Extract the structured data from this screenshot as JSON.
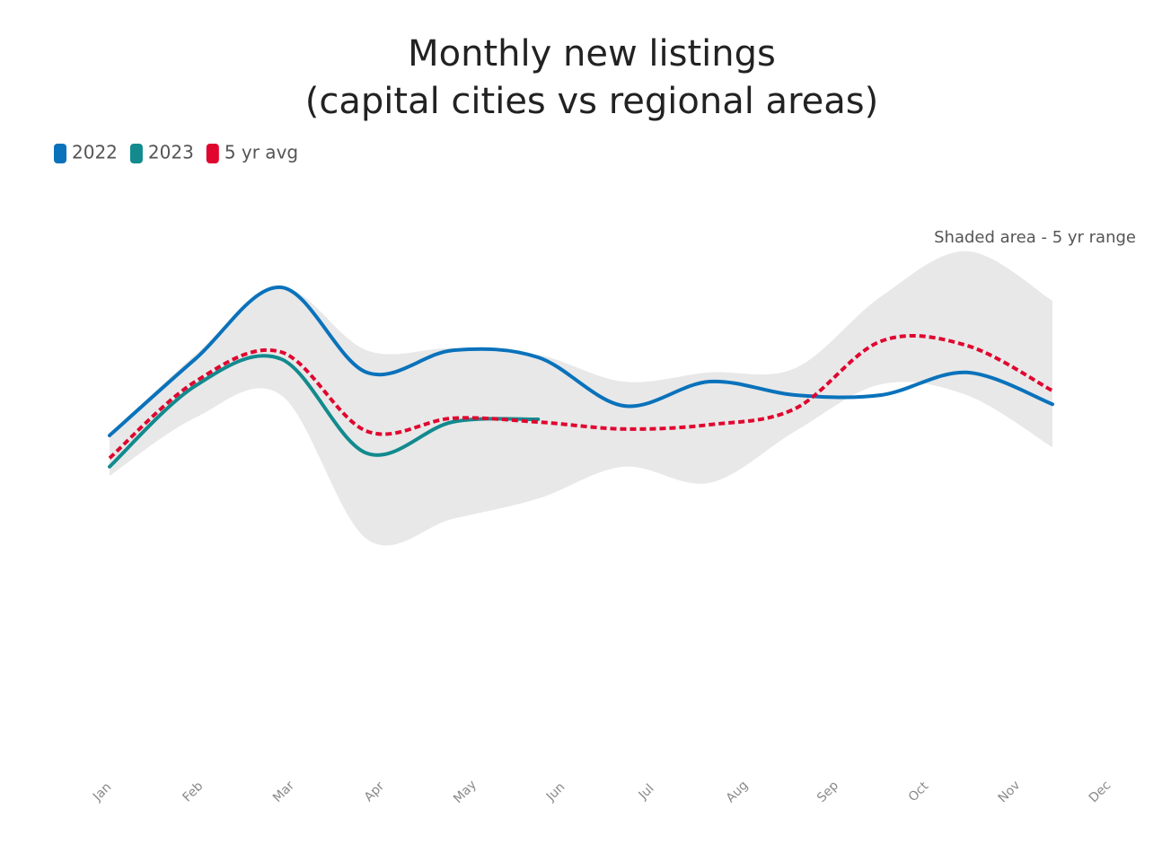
{
  "chart_data": {
    "type": "line",
    "title": [
      "Monthly new listings",
      "(capital cities vs regional areas)"
    ],
    "annotation": "Shaded area - 5 yr range",
    "categories": [
      "Jan",
      "Feb",
      "Mar",
      "Apr",
      "May",
      "Jun",
      "Jul",
      "Aug",
      "Sep",
      "Oct",
      "Nov",
      "Dec"
    ],
    "series": [
      {
        "name": "2022",
        "color": "#0a72bb",
        "dashed": false,
        "values": [
          62.5,
          76.7,
          90,
          74.2,
          78.3,
          77,
          68,
          72.5,
          70,
          70,
          74.2,
          68.3
        ]
      },
      {
        "name": "2023",
        "color": "#128a8e",
        "dashed": false,
        "values": [
          56.7,
          71.7,
          76.7,
          59.2,
          65,
          65.5,
          null,
          null,
          null,
          null,
          null,
          null
        ]
      },
      {
        "name": "5 yr avg",
        "color": "#e0062f",
        "dashed": true,
        "values": [
          58.3,
          72.5,
          78,
          63.3,
          65.7,
          65,
          63.7,
          64.5,
          67.5,
          80,
          79.2,
          70.8
        ]
      }
    ],
    "range": {
      "color": "#e8e8e8",
      "upper": [
        62.5,
        77.5,
        90,
        78.3,
        78.7,
        77.5,
        72.5,
        74.2,
        75,
        88.3,
        96.7,
        87.5
      ],
      "lower": [
        55,
        65.8,
        70,
        43.3,
        47,
        50.8,
        56.7,
        53.7,
        63.3,
        72,
        70,
        60.3
      ]
    },
    "ylim": [
      0,
      100
    ],
    "legend": "top-left",
    "grid": false
  }
}
